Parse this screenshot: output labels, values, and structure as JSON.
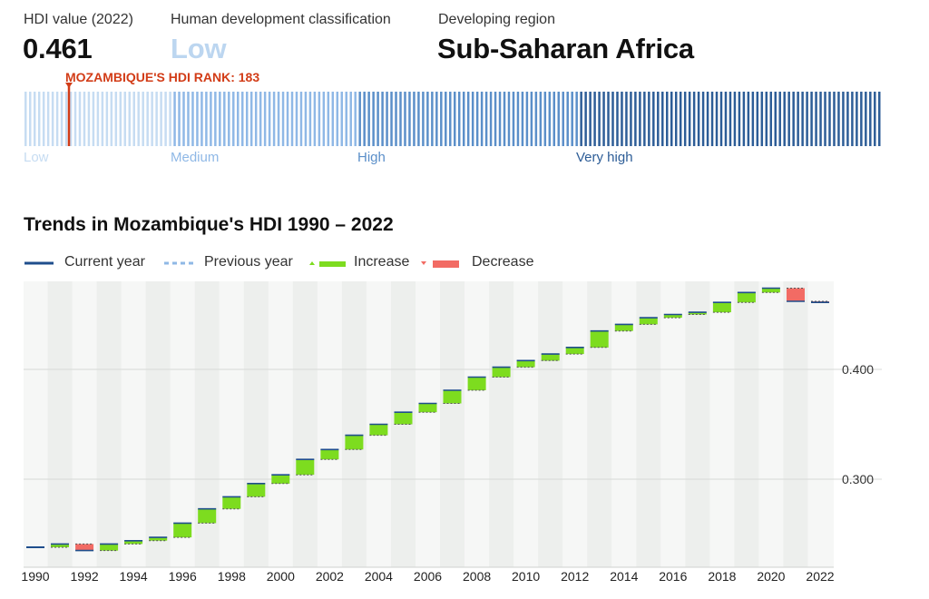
{
  "header": {
    "hdi_label": "HDI value (2022)",
    "hdi_value": "0.461",
    "class_label": "Human development classification",
    "class_value": "Low",
    "region_label": "Developing region",
    "region_value": "Sub-Saharan Africa"
  },
  "rank_strip": {
    "marker_label": "MOZAMBIQUE'S HDI RANK: 183",
    "rank": 183,
    "total_countries": 193,
    "bands": [
      {
        "label": "Low",
        "color": "#c6dcf2"
      },
      {
        "label": "Medium",
        "color": "#8fb8e6"
      },
      {
        "label": "High",
        "color": "#5b8fc9"
      },
      {
        "label": "Very high",
        "color": "#2d5d97"
      }
    ],
    "marker_color": "#d23c17"
  },
  "trend": {
    "title": "Trends in Mozambique's HDI 1990 – 2022",
    "legend": [
      {
        "key": "current",
        "label": "Current year",
        "color": "#1f4e8c"
      },
      {
        "key": "previous",
        "label": "Previous year",
        "color": "#8fb8e6"
      },
      {
        "key": "increase",
        "label": "Increase",
        "color": "#7ddc1f"
      },
      {
        "key": "decrease",
        "label": "Decrease",
        "color": "#f26b64"
      }
    ]
  },
  "chart_data": {
    "type": "bar",
    "title": "Trends in Mozambique's HDI 1990 – 2022",
    "x": [
      1990,
      1991,
      1992,
      1993,
      1994,
      1995,
      1996,
      1997,
      1998,
      1999,
      2000,
      2001,
      2002,
      2003,
      2004,
      2005,
      2006,
      2007,
      2008,
      2009,
      2010,
      2011,
      2012,
      2013,
      2014,
      2015,
      2016,
      2017,
      2018,
      2019,
      2020,
      2021,
      2022
    ],
    "values": [
      0.238,
      0.241,
      0.235,
      0.241,
      0.244,
      0.247,
      0.26,
      0.273,
      0.284,
      0.296,
      0.304,
      0.318,
      0.327,
      0.34,
      0.35,
      0.361,
      0.369,
      0.381,
      0.393,
      0.402,
      0.408,
      0.414,
      0.42,
      0.435,
      0.441,
      0.447,
      0.45,
      0.452,
      0.461,
      0.47,
      0.474,
      0.462,
      0.461
    ],
    "x_tick_labels": [
      "1990",
      "1992",
      "1994",
      "1996",
      "1998",
      "2000",
      "2002",
      "2004",
      "2006",
      "2008",
      "2010",
      "2012",
      "2014",
      "2016",
      "2018",
      "2020",
      "2022"
    ],
    "y_tick_labels": [
      "0.400",
      "0.300"
    ],
    "ylim": [
      0.22,
      0.48
    ],
    "grid": true
  }
}
